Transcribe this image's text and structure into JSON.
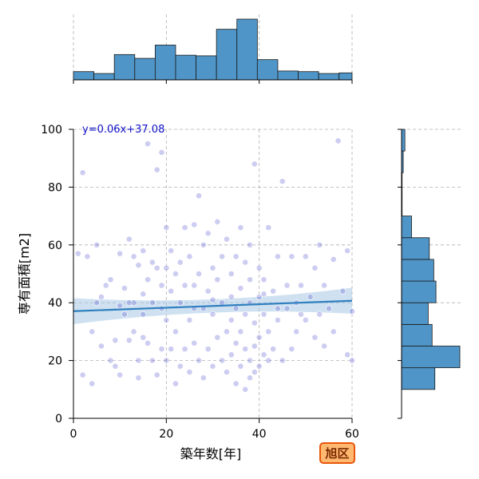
{
  "chart_data": {
    "type": "scatter",
    "equation_label": "y=0.06x+37.08",
    "xlabel": "築年数[年]",
    "ylabel": "専有面積[m2]",
    "xlim": [
      0,
      60
    ],
    "ylim": [
      0,
      100
    ],
    "x_ticks": [
      0,
      20,
      40,
      60
    ],
    "y_ticks": [
      0,
      20,
      40,
      60,
      80,
      100
    ],
    "grid": true,
    "regression": {
      "slope": 0.06,
      "intercept": 37.08,
      "x_range": [
        0,
        60
      ],
      "ci_half_width_at_center": 2.3,
      "ci_half_width_at_ends": 4.5
    },
    "colors": {
      "points": "#5a5ad2",
      "regression_line": "#2f7fbf",
      "ci_band": "#a8c8e6",
      "histogram_fill": "#4f95c7",
      "histogram_edge": "#1a1a1a",
      "badge_fill": "#ffb870",
      "badge_border": "#e8560a",
      "grid": "#b0b0b0"
    },
    "top_histogram": {
      "bin_edges": [
        0,
        4.4,
        8.8,
        13.2,
        17.6,
        22,
        26.4,
        30.8,
        35.2,
        39.6,
        44,
        48.4,
        52.8,
        57.2,
        60
      ],
      "counts": [
        13,
        10,
        40,
        34,
        55,
        39,
        38,
        80,
        96,
        32,
        14,
        13,
        10,
        11
      ]
    },
    "right_histogram": {
      "bin_edges": [
        10,
        17.5,
        25,
        32.5,
        40,
        47.5,
        55,
        62.5,
        70,
        77.5,
        85,
        92.5,
        100
      ],
      "counts": [
        60,
        105,
        55,
        48,
        62,
        58,
        50,
        18,
        1,
        1,
        3,
        6
      ]
    },
    "points": [
      [
        1,
        57
      ],
      [
        2,
        85
      ],
      [
        2,
        15
      ],
      [
        4,
        30
      ],
      [
        4,
        12
      ],
      [
        5,
        40
      ],
      [
        5,
        60
      ],
      [
        6,
        42
      ],
      [
        8,
        20
      ],
      [
        8,
        48
      ],
      [
        9,
        27
      ],
      [
        9,
        18
      ],
      [
        10,
        15
      ],
      [
        10,
        39
      ],
      [
        10,
        57
      ],
      [
        11,
        36
      ],
      [
        11,
        45
      ],
      [
        12,
        40
      ],
      [
        12,
        27
      ],
      [
        12,
        62
      ],
      [
        13,
        30
      ],
      [
        13,
        40
      ],
      [
        13,
        56
      ],
      [
        14,
        14
      ],
      [
        14,
        20
      ],
      [
        14,
        53
      ],
      [
        15,
        43
      ],
      [
        15,
        28
      ],
      [
        15,
        58
      ],
      [
        16,
        48
      ],
      [
        16,
        95
      ],
      [
        16,
        26
      ],
      [
        17,
        20
      ],
      [
        17,
        40
      ],
      [
        17,
        54
      ],
      [
        18,
        15
      ],
      [
        18,
        52
      ],
      [
        18,
        86
      ],
      [
        19,
        92
      ],
      [
        19,
        38
      ],
      [
        19,
        24
      ],
      [
        19,
        46
      ],
      [
        20,
        20
      ],
      [
        20,
        34
      ],
      [
        20,
        66
      ],
      [
        21,
        24
      ],
      [
        21,
        58
      ],
      [
        21,
        44
      ],
      [
        22,
        12
      ],
      [
        22,
        50
      ],
      [
        22,
        30
      ],
      [
        23,
        18
      ],
      [
        23,
        40
      ],
      [
        23,
        54
      ],
      [
        24,
        66
      ],
      [
        24,
        24
      ],
      [
        24,
        46
      ],
      [
        25,
        16
      ],
      [
        25,
        56
      ],
      [
        25,
        34
      ],
      [
        26,
        67
      ],
      [
        26,
        46
      ],
      [
        26,
        26
      ],
      [
        27,
        20
      ],
      [
        27,
        50
      ],
      [
        27,
        77
      ],
      [
        28,
        14
      ],
      [
        28,
        38
      ],
      [
        28,
        60
      ],
      [
        29,
        24
      ],
      [
        29,
        44
      ],
      [
        29,
        64
      ],
      [
        30,
        18
      ],
      [
        30,
        36
      ],
      [
        30,
        52
      ],
      [
        31,
        68
      ],
      [
        31,
        28
      ],
      [
        31,
        48
      ],
      [
        32,
        20
      ],
      [
        32,
        40
      ],
      [
        32,
        56
      ],
      [
        33,
        16
      ],
      [
        33,
        30
      ],
      [
        33,
        62
      ],
      [
        34,
        22
      ],
      [
        34,
        50
      ],
      [
        34,
        42
      ],
      [
        35,
        12
      ],
      [
        35,
        26
      ],
      [
        35,
        38
      ],
      [
        35,
        56
      ],
      [
        36,
        18
      ],
      [
        36,
        45
      ],
      [
        36,
        66
      ],
      [
        37,
        10
      ],
      [
        37,
        24
      ],
      [
        37,
        36
      ],
      [
        37,
        54
      ],
      [
        38,
        14
      ],
      [
        38,
        20
      ],
      [
        38,
        40
      ],
      [
        38,
        60
      ],
      [
        39,
        16
      ],
      [
        39,
        25
      ],
      [
        39,
        33
      ],
      [
        39,
        88
      ],
      [
        40,
        18
      ],
      [
        40,
        28
      ],
      [
        40,
        42
      ],
      [
        40,
        52
      ],
      [
        41,
        22
      ],
      [
        41,
        36
      ],
      [
        41,
        48
      ],
      [
        42,
        20
      ],
      [
        42,
        30
      ],
      [
        42,
        66
      ],
      [
        43,
        44
      ],
      [
        43,
        24
      ],
      [
        44,
        34
      ],
      [
        44,
        56
      ],
      [
        45,
        82
      ],
      [
        45,
        20
      ],
      [
        46,
        46
      ],
      [
        46,
        38
      ],
      [
        47,
        24
      ],
      [
        47,
        56
      ],
      [
        48,
        40
      ],
      [
        48,
        30
      ],
      [
        49,
        46
      ],
      [
        50,
        34
      ],
      [
        50,
        56
      ],
      [
        51,
        42
      ],
      [
        52,
        28
      ],
      [
        52,
        52
      ],
      [
        53,
        36
      ],
      [
        53,
        60
      ],
      [
        54,
        25
      ],
      [
        54,
        46
      ],
      [
        55,
        38
      ],
      [
        56,
        55
      ],
      [
        56,
        30
      ],
      [
        57,
        96
      ],
      [
        58,
        44
      ],
      [
        59,
        22
      ],
      [
        59,
        58
      ],
      [
        60,
        20
      ],
      [
        60,
        37
      ],
      [
        3,
        56
      ],
      [
        7,
        46
      ],
      [
        6,
        25
      ],
      [
        15,
        36
      ],
      [
        20,
        52
      ],
      [
        26,
        38
      ],
      [
        30,
        41
      ],
      [
        34,
        34
      ],
      [
        36,
        30
      ],
      [
        38,
        48
      ],
      [
        41,
        43
      ],
      [
        44,
        38
      ],
      [
        49,
        36
      ]
    ],
    "badge": "旭区"
  }
}
